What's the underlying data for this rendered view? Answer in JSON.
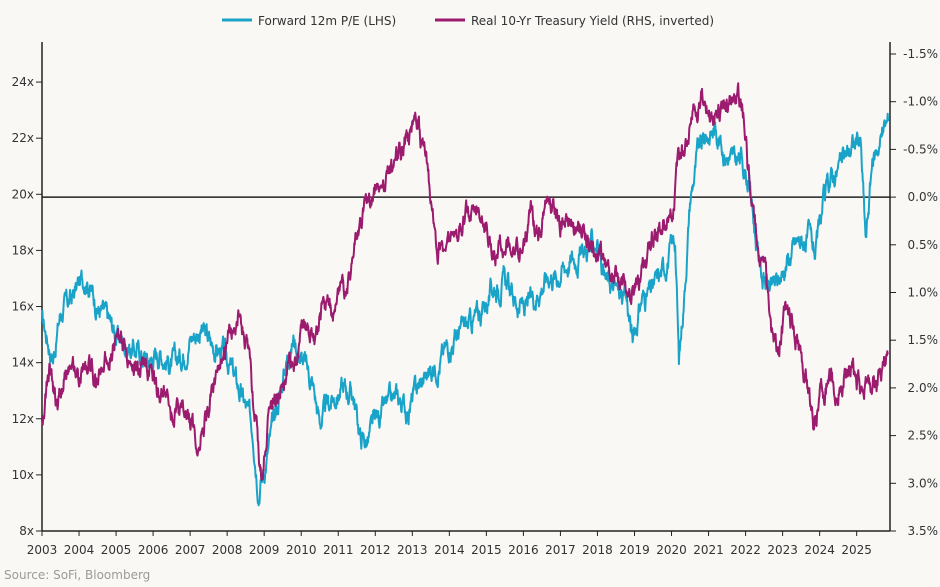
{
  "colors": {
    "pe": "#1aa3c8",
    "yield": "#9b1b6e",
    "axis": "#222222",
    "background": "#faf8f5"
  },
  "chart_data": {
    "type": "line",
    "title": "",
    "legend": {
      "placement": "top-center",
      "entries": [
        {
          "name": "Forward 12m P/E (LHS)",
          "color": "#1aa3c8"
        },
        {
          "name": "Real 10-Yr Treasury Yield (RHS, inverted)",
          "color": "#9b1b6e"
        }
      ]
    },
    "x_range": [
      2003.0,
      2025.9
    ],
    "x_ticks": [
      2003,
      2004,
      2005,
      2006,
      2007,
      2008,
      2009,
      2010,
      2011,
      2012,
      2013,
      2014,
      2015,
      2016,
      2017,
      2018,
      2019,
      2020,
      2021,
      2022,
      2023,
      2024,
      2025
    ],
    "y_left": {
      "range": [
        8,
        25
      ],
      "ticks": [
        8,
        10,
        12,
        14,
        16,
        18,
        20,
        22,
        24
      ],
      "tick_labels": [
        "8x",
        "10x",
        "12x",
        "14x",
        "16x",
        "18x",
        "20x",
        "22x",
        "24x"
      ]
    },
    "y_right": {
      "range": [
        3.5,
        -1.5
      ],
      "inverted": true,
      "ticks": [
        -1.5,
        -1.0,
        -0.5,
        0,
        0.5,
        1,
        1.5,
        2,
        2.5,
        3,
        3.5
      ],
      "tick_labels": [
        "-1.5%",
        "-1.0%",
        "-0.5%",
        "0.0%",
        "0.5%",
        "1.0%",
        "1.5%",
        "2.0%",
        "2.5%",
        "3.0%",
        "3.5%"
      ]
    },
    "zero_line": 0,
    "series": [
      {
        "name": "Forward 12m P/E (LHS)",
        "axis": "left",
        "points": [
          [
            2003.0,
            15.5
          ],
          [
            2003.3,
            14.2
          ],
          [
            2003.5,
            15.8
          ],
          [
            2003.8,
            16.3
          ],
          [
            2004.0,
            16.8
          ],
          [
            2004.2,
            17.1
          ],
          [
            2004.5,
            16.0
          ],
          [
            2004.8,
            15.5
          ],
          [
            2005.0,
            15.0
          ],
          [
            2005.3,
            14.6
          ],
          [
            2005.6,
            14.4
          ],
          [
            2005.9,
            14.1
          ],
          [
            2006.2,
            14.4
          ],
          [
            2006.5,
            13.9
          ],
          [
            2006.8,
            14.3
          ],
          [
            2007.0,
            14.9
          ],
          [
            2007.3,
            15.2
          ],
          [
            2007.6,
            14.6
          ],
          [
            2007.9,
            14.3
          ],
          [
            2008.1,
            13.8
          ],
          [
            2008.3,
            13.1
          ],
          [
            2008.5,
            12.4
          ],
          [
            2008.7,
            11.6
          ],
          [
            2008.85,
            9.6
          ],
          [
            2009.0,
            10.2
          ],
          [
            2009.3,
            12.1
          ],
          [
            2009.6,
            14.1
          ],
          [
            2009.8,
            14.9
          ],
          [
            2010.0,
            14.2
          ],
          [
            2010.3,
            13.3
          ],
          [
            2010.5,
            11.9
          ],
          [
            2010.8,
            12.6
          ],
          [
            2011.1,
            13.1
          ],
          [
            2011.4,
            12.9
          ],
          [
            2011.6,
            11.3
          ],
          [
            2011.8,
            11.2
          ],
          [
            2012.0,
            11.9
          ],
          [
            2012.3,
            12.4
          ],
          [
            2012.6,
            12.7
          ],
          [
            2012.9,
            12.3
          ],
          [
            2013.1,
            13.0
          ],
          [
            2013.4,
            13.6
          ],
          [
            2013.7,
            14.0
          ],
          [
            2014.0,
            14.7
          ],
          [
            2014.3,
            15.1
          ],
          [
            2014.6,
            15.4
          ],
          [
            2014.9,
            15.9
          ],
          [
            2015.2,
            16.7
          ],
          [
            2015.5,
            16.9
          ],
          [
            2015.8,
            16.2
          ],
          [
            2016.1,
            15.9
          ],
          [
            2016.4,
            16.6
          ],
          [
            2016.7,
            17.2
          ],
          [
            2016.9,
            17.1
          ],
          [
            2017.2,
            17.6
          ],
          [
            2017.5,
            17.8
          ],
          [
            2017.8,
            18.1
          ],
          [
            2018.0,
            18.4
          ],
          [
            2018.2,
            17.0
          ],
          [
            2018.5,
            16.6
          ],
          [
            2018.8,
            16.1
          ],
          [
            2018.95,
            14.8
          ],
          [
            2019.2,
            16.3
          ],
          [
            2019.5,
            16.6
          ],
          [
            2019.8,
            17.4
          ],
          [
            2020.1,
            18.4
          ],
          [
            2020.2,
            14.0
          ],
          [
            2020.35,
            16.6
          ],
          [
            2020.5,
            19.8
          ],
          [
            2020.7,
            21.4
          ],
          [
            2020.9,
            22.0
          ],
          [
            2021.2,
            22.4
          ],
          [
            2021.4,
            21.6
          ],
          [
            2021.7,
            21.1
          ],
          [
            2021.9,
            21.3
          ],
          [
            2022.1,
            20.4
          ],
          [
            2022.3,
            18.2
          ],
          [
            2022.45,
            17.1
          ],
          [
            2022.7,
            16.6
          ],
          [
            2022.9,
            16.9
          ],
          [
            2023.1,
            17.6
          ],
          [
            2023.4,
            18.3
          ],
          [
            2023.7,
            18.4
          ],
          [
            2023.9,
            17.9
          ],
          [
            2024.1,
            19.6
          ],
          [
            2024.3,
            20.6
          ],
          [
            2024.6,
            21.1
          ],
          [
            2024.9,
            21.8
          ],
          [
            2025.1,
            21.9
          ],
          [
            2025.25,
            18.3
          ],
          [
            2025.4,
            20.9
          ],
          [
            2025.6,
            21.9
          ],
          [
            2025.85,
            22.6
          ]
        ]
      },
      {
        "name": "Real 10-Yr Treasury Yield (RHS, inverted)",
        "axis": "right",
        "points": [
          [
            2003.0,
            2.3
          ],
          [
            2003.2,
            1.8
          ],
          [
            2003.4,
            2.2
          ],
          [
            2003.6,
            1.9
          ],
          [
            2003.8,
            1.6
          ],
          [
            2004.0,
            1.9
          ],
          [
            2004.2,
            1.75
          ],
          [
            2004.5,
            1.9
          ],
          [
            2004.8,
            1.6
          ],
          [
            2005.0,
            1.5
          ],
          [
            2005.3,
            1.6
          ],
          [
            2005.6,
            1.8
          ],
          [
            2005.8,
            1.7
          ],
          [
            2006.0,
            1.9
          ],
          [
            2006.3,
            2.1
          ],
          [
            2006.5,
            2.3
          ],
          [
            2006.8,
            2.2
          ],
          [
            2007.0,
            2.35
          ],
          [
            2007.2,
            2.6
          ],
          [
            2007.4,
            2.3
          ],
          [
            2007.6,
            2.1
          ],
          [
            2007.9,
            1.75
          ],
          [
            2008.1,
            1.4
          ],
          [
            2008.3,
            1.2
          ],
          [
            2008.5,
            1.5
          ],
          [
            2008.65,
            1.9
          ],
          [
            2008.85,
            2.7
          ],
          [
            2008.95,
            3.0
          ],
          [
            2009.1,
            2.3
          ],
          [
            2009.4,
            2.0
          ],
          [
            2009.7,
            1.8
          ],
          [
            2009.9,
            1.6
          ],
          [
            2010.1,
            1.4
          ],
          [
            2010.4,
            1.5
          ],
          [
            2010.6,
            1.1
          ],
          [
            2010.9,
            1.2
          ],
          [
            2011.1,
            1.0
          ],
          [
            2011.3,
            0.8
          ],
          [
            2011.5,
            0.4
          ],
          [
            2011.7,
            0.2
          ],
          [
            2011.9,
            0.0
          ],
          [
            2012.0,
            -0.15
          ],
          [
            2012.3,
            -0.2
          ],
          [
            2012.6,
            -0.45
          ],
          [
            2012.9,
            -0.6
          ],
          [
            2013.1,
            -0.7
          ],
          [
            2013.3,
            -0.5
          ],
          [
            2013.4,
            -0.3
          ],
          [
            2013.55,
            0.1
          ],
          [
            2013.7,
            0.6
          ],
          [
            2013.9,
            0.5
          ],
          [
            2014.1,
            0.5
          ],
          [
            2014.3,
            0.3
          ],
          [
            2014.5,
            0.2
          ],
          [
            2014.8,
            0.1
          ],
          [
            2015.0,
            0.3
          ],
          [
            2015.2,
            0.6
          ],
          [
            2015.4,
            0.5
          ],
          [
            2015.6,
            0.3
          ],
          [
            2015.8,
            0.5
          ],
          [
            2016.0,
            0.5
          ],
          [
            2016.2,
            0.25
          ],
          [
            2016.4,
            0.35
          ],
          [
            2016.6,
            0.1
          ],
          [
            2016.8,
            0.0
          ],
          [
            2016.95,
            0.3
          ],
          [
            2017.1,
            0.3
          ],
          [
            2017.4,
            0.35
          ],
          [
            2017.7,
            0.4
          ],
          [
            2017.9,
            0.5
          ],
          [
            2018.1,
            0.6
          ],
          [
            2018.3,
            0.8
          ],
          [
            2018.5,
            0.85
          ],
          [
            2018.75,
            1.0
          ],
          [
            2018.9,
            1.1
          ],
          [
            2019.1,
            0.95
          ],
          [
            2019.3,
            0.7
          ],
          [
            2019.5,
            0.45
          ],
          [
            2019.75,
            0.3
          ],
          [
            2019.9,
            0.2
          ],
          [
            2020.05,
            0.0
          ],
          [
            2020.2,
            -0.4
          ],
          [
            2020.35,
            -0.55
          ],
          [
            2020.6,
            -0.85
          ],
          [
            2020.8,
            -1.05
          ],
          [
            2021.0,
            -0.85
          ],
          [
            2021.2,
            -0.8
          ],
          [
            2021.4,
            -0.9
          ],
          [
            2021.6,
            -1.0
          ],
          [
            2021.8,
            -1.05
          ],
          [
            2021.95,
            -0.9
          ],
          [
            2022.05,
            -0.4
          ],
          [
            2022.15,
            0.0
          ],
          [
            2022.35,
            0.5
          ],
          [
            2022.55,
            0.8
          ],
          [
            2022.7,
            1.4
          ],
          [
            2022.9,
            1.6
          ],
          [
            2023.1,
            1.2
          ],
          [
            2023.3,
            1.35
          ],
          [
            2023.5,
            1.7
          ],
          [
            2023.7,
            2.0
          ],
          [
            2023.85,
            2.4
          ],
          [
            2024.05,
            2.0
          ],
          [
            2024.3,
            1.9
          ],
          [
            2024.5,
            2.1
          ],
          [
            2024.7,
            1.75
          ],
          [
            2024.9,
            1.8
          ],
          [
            2025.1,
            2.0
          ],
          [
            2025.3,
            1.95
          ],
          [
            2025.55,
            1.85
          ],
          [
            2025.85,
            1.65
          ]
        ]
      }
    ]
  },
  "source_text": "Source: SoFi, Bloomberg"
}
